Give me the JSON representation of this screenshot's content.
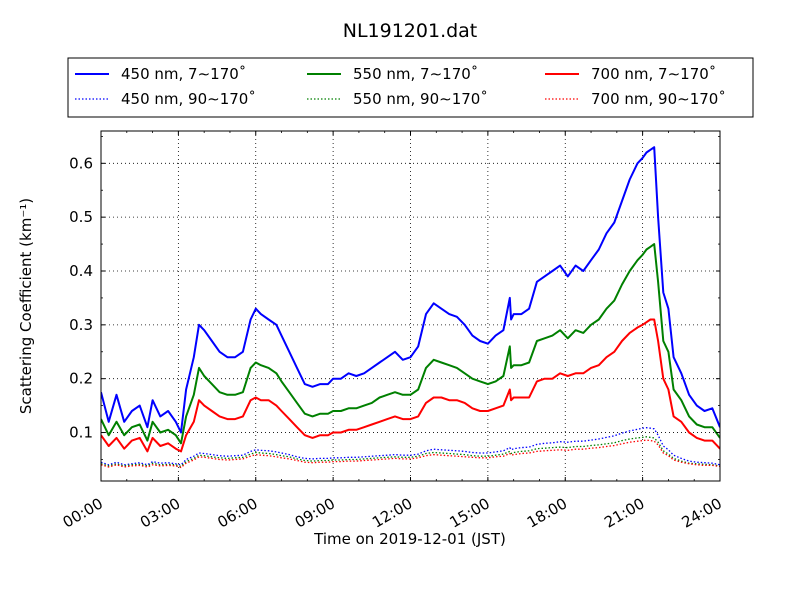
{
  "chart_data": {
    "type": "line",
    "title": "NL191201.dat",
    "xlabel": "Time on 2019-12-01 (JST)",
    "ylabel": "Scattering Coefficient (km⁻¹)",
    "xlim": [
      0,
      24
    ],
    "ylim": [
      0.01,
      0.66
    ],
    "grid": true,
    "legend_position": "top",
    "x_tick_labels": [
      "00:00",
      "03:00",
      "06:00",
      "09:00",
      "12:00",
      "15:00",
      "18:00",
      "21:00",
      "24:00"
    ],
    "y_tick_labels": [
      "0.1",
      "0.2",
      "0.3",
      "0.4",
      "0.5",
      "0.6"
    ],
    "y_ticks": [
      0.1,
      0.2,
      0.3,
      0.4,
      0.5,
      0.6
    ],
    "x": [
      0,
      0.3,
      0.6,
      0.9,
      1.2,
      1.5,
      1.8,
      2.0,
      2.3,
      2.6,
      2.9,
      3.1,
      3.3,
      3.6,
      3.8,
      4.0,
      4.3,
      4.6,
      4.9,
      5.2,
      5.5,
      5.8,
      6.0,
      6.2,
      6.5,
      6.8,
      7.0,
      7.3,
      7.6,
      7.9,
      8.2,
      8.5,
      8.8,
      9.0,
      9.3,
      9.6,
      9.9,
      10.2,
      10.5,
      10.8,
      11.1,
      11.4,
      11.7,
      12.0,
      12.3,
      12.6,
      12.9,
      13.2,
      13.5,
      13.8,
      14.1,
      14.4,
      14.7,
      15.0,
      15.3,
      15.6,
      15.85,
      15.9,
      16.0,
      16.3,
      16.6,
      16.9,
      17.2,
      17.5,
      17.8,
      18.1,
      18.4,
      18.7,
      19.0,
      19.3,
      19.6,
      19.9,
      20.2,
      20.5,
      20.8,
      21.0,
      21.15,
      21.3,
      21.45,
      21.6,
      21.8,
      22.0,
      22.2,
      22.5,
      22.8,
      23.1,
      23.4,
      23.7,
      24.0
    ],
    "series": [
      {
        "name": "450 nm, 7∼170˚",
        "color": "#0000ff",
        "style": "solid",
        "values": [
          0.175,
          0.12,
          0.17,
          0.12,
          0.14,
          0.15,
          0.11,
          0.16,
          0.13,
          0.14,
          0.12,
          0.1,
          0.18,
          0.24,
          0.3,
          0.29,
          0.27,
          0.25,
          0.24,
          0.24,
          0.25,
          0.31,
          0.33,
          0.32,
          0.31,
          0.3,
          0.28,
          0.25,
          0.22,
          0.19,
          0.185,
          0.19,
          0.19,
          0.2,
          0.2,
          0.21,
          0.205,
          0.21,
          0.22,
          0.23,
          0.24,
          0.25,
          0.235,
          0.24,
          0.26,
          0.32,
          0.34,
          0.33,
          0.32,
          0.315,
          0.3,
          0.28,
          0.27,
          0.265,
          0.28,
          0.29,
          0.35,
          0.31,
          0.32,
          0.32,
          0.33,
          0.38,
          0.39,
          0.4,
          0.41,
          0.39,
          0.41,
          0.4,
          0.42,
          0.44,
          0.47,
          0.49,
          0.53,
          0.57,
          0.6,
          0.61,
          0.62,
          0.625,
          0.63,
          0.5,
          0.36,
          0.33,
          0.24,
          0.21,
          0.17,
          0.15,
          0.14,
          0.145,
          0.11
        ]
      },
      {
        "name": "550 nm, 7∼170˚",
        "color": "#008000",
        "style": "solid",
        "values": [
          0.125,
          0.095,
          0.12,
          0.095,
          0.11,
          0.115,
          0.085,
          0.12,
          0.1,
          0.105,
          0.095,
          0.08,
          0.13,
          0.17,
          0.22,
          0.205,
          0.19,
          0.175,
          0.17,
          0.17,
          0.175,
          0.22,
          0.23,
          0.225,
          0.22,
          0.21,
          0.195,
          0.175,
          0.155,
          0.135,
          0.13,
          0.135,
          0.135,
          0.14,
          0.14,
          0.145,
          0.145,
          0.15,
          0.155,
          0.165,
          0.17,
          0.175,
          0.17,
          0.17,
          0.18,
          0.22,
          0.235,
          0.23,
          0.225,
          0.22,
          0.21,
          0.2,
          0.195,
          0.19,
          0.195,
          0.205,
          0.26,
          0.22,
          0.225,
          0.225,
          0.23,
          0.27,
          0.275,
          0.28,
          0.29,
          0.275,
          0.29,
          0.285,
          0.3,
          0.31,
          0.33,
          0.345,
          0.375,
          0.4,
          0.42,
          0.43,
          0.44,
          0.445,
          0.45,
          0.38,
          0.27,
          0.25,
          0.18,
          0.16,
          0.13,
          0.115,
          0.11,
          0.11,
          0.09
        ]
      },
      {
        "name": "700 nm, 7∼170˚",
        "color": "#ff0000",
        "style": "solid",
        "values": [
          0.095,
          0.075,
          0.09,
          0.07,
          0.085,
          0.09,
          0.065,
          0.09,
          0.075,
          0.08,
          0.07,
          0.065,
          0.095,
          0.12,
          0.16,
          0.15,
          0.14,
          0.13,
          0.125,
          0.125,
          0.13,
          0.16,
          0.165,
          0.16,
          0.16,
          0.15,
          0.14,
          0.125,
          0.11,
          0.095,
          0.09,
          0.095,
          0.095,
          0.1,
          0.1,
          0.105,
          0.105,
          0.11,
          0.115,
          0.12,
          0.125,
          0.13,
          0.125,
          0.125,
          0.13,
          0.155,
          0.165,
          0.165,
          0.16,
          0.16,
          0.155,
          0.145,
          0.14,
          0.14,
          0.145,
          0.15,
          0.18,
          0.16,
          0.165,
          0.165,
          0.165,
          0.195,
          0.2,
          0.2,
          0.21,
          0.205,
          0.21,
          0.21,
          0.22,
          0.225,
          0.24,
          0.25,
          0.27,
          0.285,
          0.295,
          0.3,
          0.305,
          0.31,
          0.31,
          0.27,
          0.2,
          0.18,
          0.13,
          0.12,
          0.1,
          0.09,
          0.085,
          0.085,
          0.07
        ]
      },
      {
        "name": "450 nm, 90∼170˚",
        "color": "#0000ff",
        "style": "dotted",
        "values": [
          0.045,
          0.04,
          0.045,
          0.04,
          0.042,
          0.044,
          0.04,
          0.046,
          0.043,
          0.044,
          0.042,
          0.04,
          0.05,
          0.056,
          0.062,
          0.061,
          0.059,
          0.057,
          0.056,
          0.057,
          0.058,
          0.065,
          0.068,
          0.067,
          0.066,
          0.064,
          0.062,
          0.059,
          0.055,
          0.052,
          0.051,
          0.052,
          0.052,
          0.053,
          0.053,
          0.054,
          0.054,
          0.055,
          0.056,
          0.057,
          0.058,
          0.059,
          0.058,
          0.058,
          0.06,
          0.066,
          0.069,
          0.068,
          0.067,
          0.066,
          0.065,
          0.063,
          0.062,
          0.062,
          0.064,
          0.066,
          0.072,
          0.068,
          0.07,
          0.072,
          0.073,
          0.078,
          0.08,
          0.081,
          0.083,
          0.082,
          0.084,
          0.084,
          0.086,
          0.088,
          0.091,
          0.094,
          0.099,
          0.103,
          0.106,
          0.108,
          0.109,
          0.108,
          0.107,
          0.095,
          0.075,
          0.068,
          0.058,
          0.052,
          0.047,
          0.045,
          0.044,
          0.043,
          0.04
        ]
      },
      {
        "name": "550 nm, 90∼170˚",
        "color": "#008000",
        "style": "dotted",
        "values": [
          0.042,
          0.038,
          0.042,
          0.038,
          0.04,
          0.041,
          0.038,
          0.043,
          0.04,
          0.041,
          0.04,
          0.037,
          0.046,
          0.052,
          0.058,
          0.057,
          0.055,
          0.053,
          0.052,
          0.053,
          0.054,
          0.06,
          0.063,
          0.062,
          0.061,
          0.059,
          0.057,
          0.055,
          0.051,
          0.048,
          0.047,
          0.048,
          0.048,
          0.049,
          0.049,
          0.05,
          0.05,
          0.051,
          0.052,
          0.053,
          0.054,
          0.055,
          0.054,
          0.054,
          0.056,
          0.061,
          0.063,
          0.062,
          0.061,
          0.06,
          0.059,
          0.057,
          0.056,
          0.056,
          0.058,
          0.06,
          0.065,
          0.061,
          0.063,
          0.065,
          0.066,
          0.07,
          0.071,
          0.072,
          0.073,
          0.072,
          0.074,
          0.074,
          0.076,
          0.077,
          0.079,
          0.081,
          0.085,
          0.088,
          0.09,
          0.091,
          0.092,
          0.091,
          0.09,
          0.082,
          0.066,
          0.06,
          0.052,
          0.047,
          0.043,
          0.042,
          0.041,
          0.04,
          0.038
        ]
      },
      {
        "name": "700 nm, 90∼170˚",
        "color": "#ff0000",
        "style": "dotted",
        "values": [
          0.04,
          0.036,
          0.04,
          0.036,
          0.038,
          0.039,
          0.036,
          0.04,
          0.038,
          0.039,
          0.038,
          0.035,
          0.043,
          0.049,
          0.055,
          0.054,
          0.052,
          0.05,
          0.049,
          0.05,
          0.051,
          0.056,
          0.059,
          0.058,
          0.057,
          0.055,
          0.053,
          0.051,
          0.048,
          0.045,
          0.044,
          0.045,
          0.045,
          0.046,
          0.046,
          0.047,
          0.047,
          0.048,
          0.049,
          0.05,
          0.051,
          0.052,
          0.051,
          0.051,
          0.053,
          0.057,
          0.059,
          0.058,
          0.057,
          0.056,
          0.055,
          0.054,
          0.053,
          0.053,
          0.055,
          0.056,
          0.061,
          0.058,
          0.059,
          0.061,
          0.062,
          0.065,
          0.066,
          0.067,
          0.068,
          0.067,
          0.069,
          0.069,
          0.071,
          0.072,
          0.074,
          0.076,
          0.079,
          0.082,
          0.084,
          0.085,
          0.086,
          0.085,
          0.084,
          0.077,
          0.062,
          0.057,
          0.049,
          0.045,
          0.042,
          0.04,
          0.039,
          0.039,
          0.037
        ]
      }
    ]
  }
}
